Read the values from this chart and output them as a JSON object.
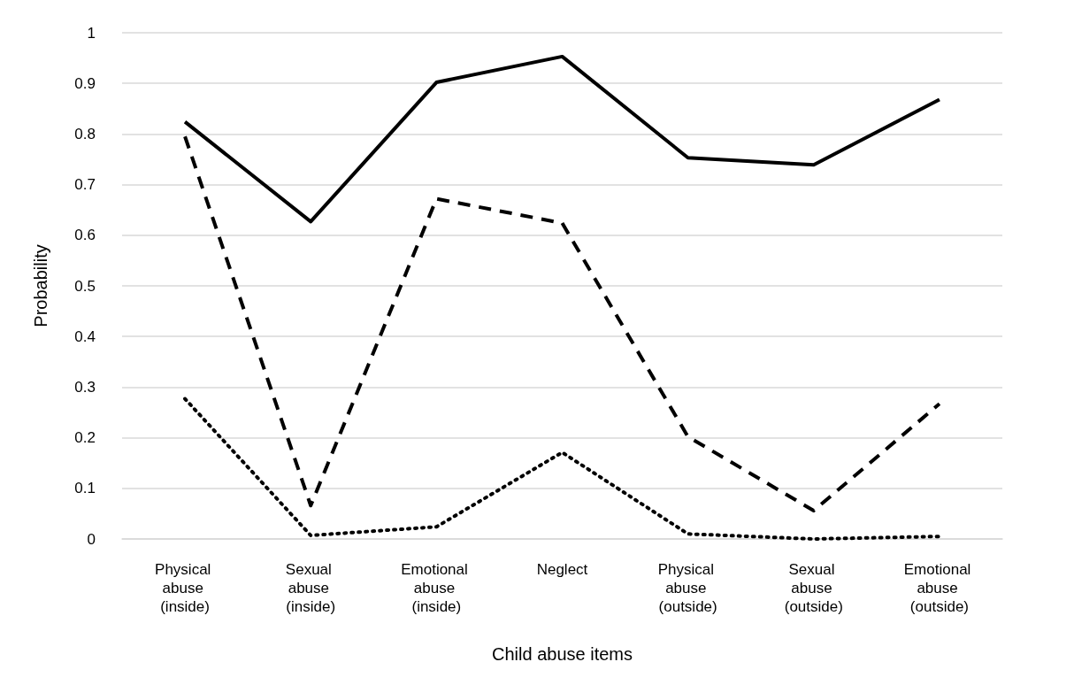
{
  "chart_data": {
    "type": "line",
    "xlabel": "Child abuse items",
    "ylabel": "Probability",
    "categories": [
      "Physical abuse (inside)",
      "Sexual abuse (inside)",
      "Emotional abuse (inside)",
      "Neglect",
      "Physical abuse (outside)",
      "Sexual abuse (outside)",
      "Emotional abuse (outside)"
    ],
    "series": [
      {
        "color": "#000000",
        "line_style": "solid",
        "values": [
          0.824,
          0.627,
          0.902,
          0.953,
          0.753,
          0.739,
          0.868
        ]
      },
      {
        "color": "#000000",
        "line_style": "dashed",
        "values": [
          0.795,
          0.066,
          0.672,
          0.624,
          0.202,
          0.056,
          0.267
        ]
      },
      {
        "color": "#000000",
        "line_style": "dotted",
        "values": [
          0.277,
          0.007,
          0.024,
          0.171,
          0.01,
          0.0,
          0.005
        ]
      }
    ],
    "ylim": [
      0,
      1
    ],
    "yticks": [
      0,
      0.1,
      0.2,
      0.3,
      0.4,
      0.5,
      0.6,
      0.7,
      0.8,
      0.9,
      1
    ],
    "grid": "y",
    "marker": "none"
  }
}
